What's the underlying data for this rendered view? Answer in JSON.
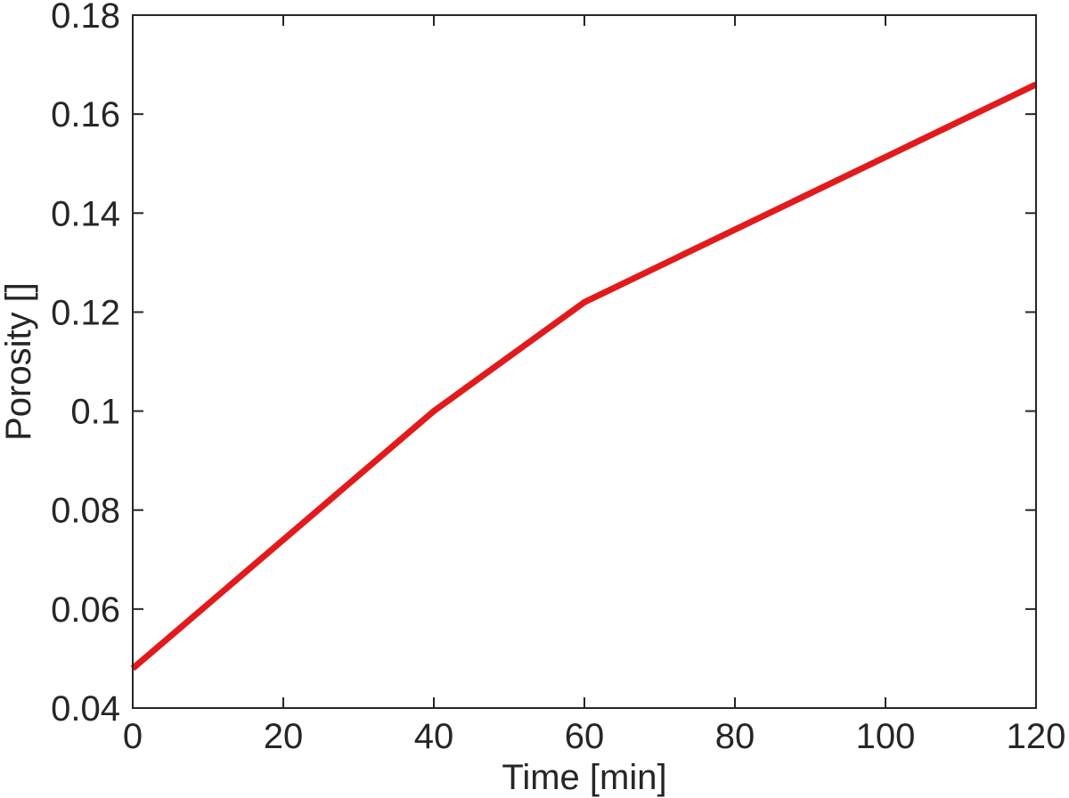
{
  "chart_data": {
    "type": "line",
    "title": "",
    "xlabel": "Time [min]",
    "ylabel": "Porosity []",
    "xlim": [
      0,
      120
    ],
    "ylim": [
      0.04,
      0.18
    ],
    "xticks": [
      0,
      20,
      40,
      60,
      80,
      100,
      120
    ],
    "xtick_labels": [
      "0",
      "20",
      "40",
      "60",
      "80",
      "100",
      "120"
    ],
    "yticks": [
      0.04,
      0.06,
      0.08,
      0.1,
      0.12,
      0.14,
      0.16,
      0.18
    ],
    "ytick_labels": [
      "0.04",
      "0.06",
      "0.08",
      "0.1",
      "0.12",
      "0.14",
      "0.16",
      "0.18"
    ],
    "grid": false,
    "box": true,
    "series": [
      {
        "color": "#e31a1c",
        "x": [
          0,
          40,
          60,
          120
        ],
        "y": [
          0.048,
          0.1,
          0.122,
          0.166
        ]
      }
    ]
  }
}
